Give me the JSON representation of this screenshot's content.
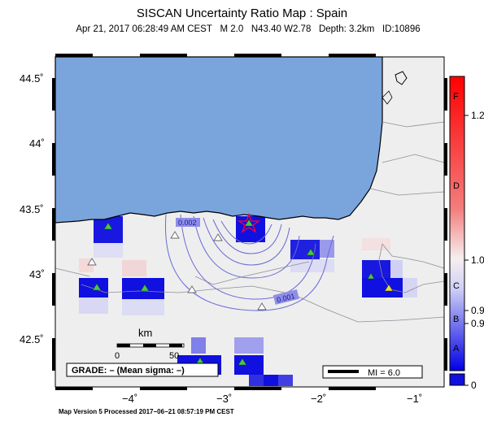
{
  "title": "SISCAN Uncertainty Ratio Map : Spain",
  "event": {
    "datetime": "Apr 21, 2017 06:28:49 AM CEST",
    "magnitude": "M 2.0",
    "location": "N43.40 W2.78",
    "depth": "Depth: 3.2km",
    "id": "ID:10896"
  },
  "axes": {
    "lat_labels": [
      "44.5˚",
      "44˚",
      "43.5˚",
      "43˚",
      "42.5˚"
    ],
    "lon_labels": [
      "−4˚",
      "−3˚",
      "−2˚",
      "−1˚"
    ]
  },
  "contours": {
    "inner_label": "0.002",
    "outer_label": "0.001"
  },
  "scale_bar": {
    "unit": "km",
    "start": "0",
    "end": "50"
  },
  "grade_box": "GRADE: – (Mean sigma: –)",
  "mi_legend": "MI = 6.0",
  "colorbar": {
    "grades": [
      "F",
      "D",
      "C",
      "B",
      "A"
    ],
    "values": [
      "1.2",
      "1.0",
      "0.9",
      "0.9",
      "0"
    ]
  },
  "footer": "Map Version 5 Processed 2017−06−21 08:57:19 PM CEST",
  "colors": {
    "sea": "#7aa4dc",
    "land": "#eeeeee",
    "cell_blue": "#1010e0",
    "epicenter": "#e0004a",
    "station": "#3ecb4a"
  }
}
